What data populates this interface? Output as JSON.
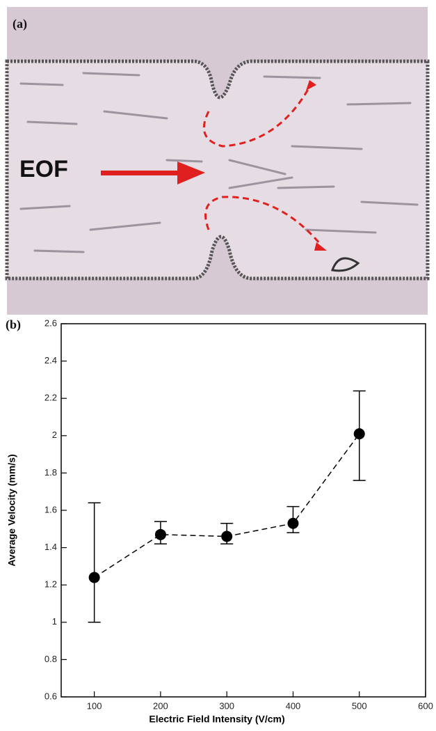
{
  "figure": {
    "panel_a_label": "(a)",
    "panel_b_label": "(b)",
    "annotation": "EOF"
  },
  "chart_data": {
    "type": "errorbar",
    "xlabel": "Electric Field Intensity (V/cm)",
    "ylabel": "Average Velocity (mm/s)",
    "x": [
      100,
      200,
      300,
      400,
      500
    ],
    "values": [
      1.24,
      1.47,
      1.46,
      1.53,
      2.01
    ],
    "err_plus": [
      0.4,
      0.07,
      0.07,
      0.09,
      0.23
    ],
    "err_minus": [
      0.24,
      0.05,
      0.04,
      0.05,
      0.25
    ],
    "color": "#000000",
    "xlim": [
      50,
      600
    ],
    "xticks": [
      100,
      200,
      300,
      400,
      500,
      600
    ],
    "ylim": [
      0.6,
      2.6
    ],
    "yticks": [
      0.6,
      0.8,
      1,
      1.2,
      1.4,
      1.6,
      1.8,
      2,
      2.2,
      2.4,
      2.6
    ]
  }
}
